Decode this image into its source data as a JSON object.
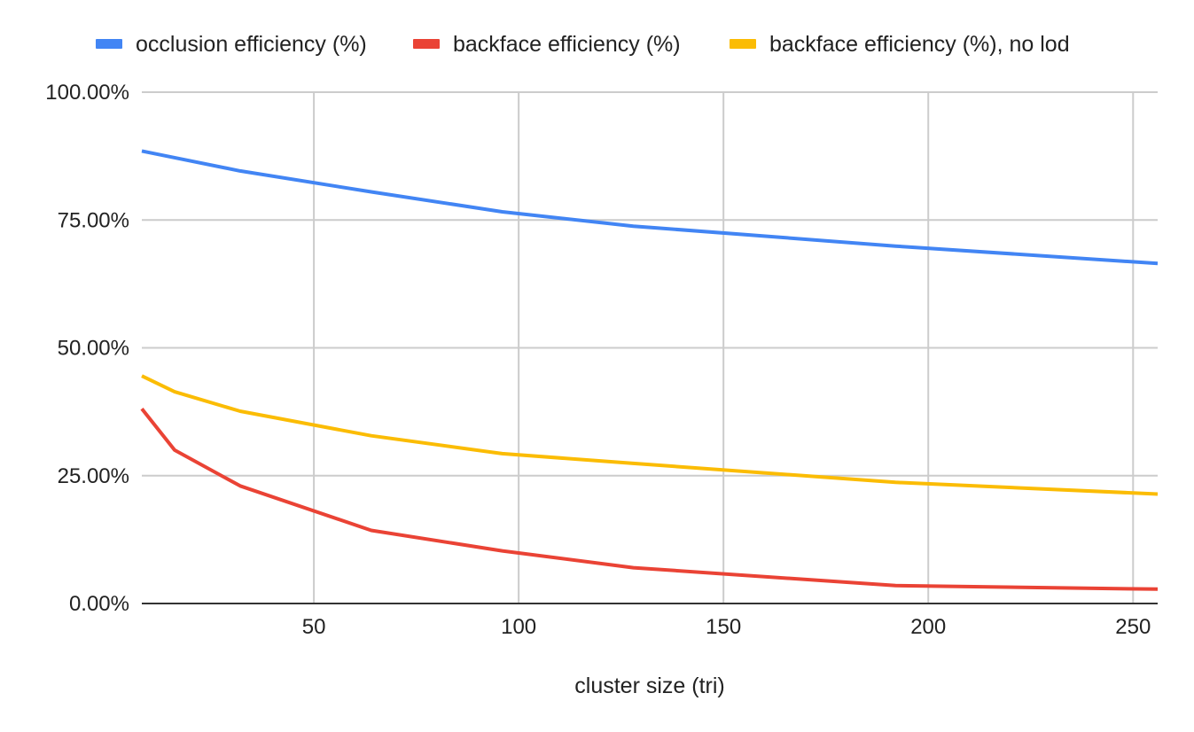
{
  "chart_data": {
    "type": "line",
    "title": "",
    "xlabel": "cluster size (tri)",
    "ylabel": "",
    "x": [
      8,
      16,
      32,
      64,
      96,
      128,
      192,
      256
    ],
    "series": [
      {
        "name": "occlusion efficiency (%)",
        "color": "#4285f4",
        "values": [
          0.885,
          0.872,
          0.846,
          0.805,
          0.766,
          0.738,
          0.699,
          0.665
        ]
      },
      {
        "name": "backface efficiency (%)",
        "color": "#ea4335",
        "values": [
          0.381,
          0.3,
          0.23,
          0.143,
          0.103,
          0.07,
          0.035,
          0.028
        ]
      },
      {
        "name": "backface efficiency (%), no lod",
        "color": "#fbbc04",
        "values": [
          0.445,
          0.414,
          0.376,
          0.328,
          0.293,
          0.274,
          0.237,
          0.214
        ]
      }
    ],
    "xlim": [
      8,
      256
    ],
    "ylim": [
      0,
      1
    ],
    "x_ticks": [
      50,
      100,
      150,
      200,
      250
    ],
    "x_tick_labels": [
      "50",
      "100",
      "150",
      "200",
      "250"
    ],
    "y_ticks": [
      0,
      0.25,
      0.5,
      0.75,
      1
    ],
    "y_tick_labels": [
      "0.00%",
      "25.00%",
      "50.00%",
      "75.00%",
      "100.00%"
    ],
    "grid": true,
    "legend_position": "top"
  }
}
